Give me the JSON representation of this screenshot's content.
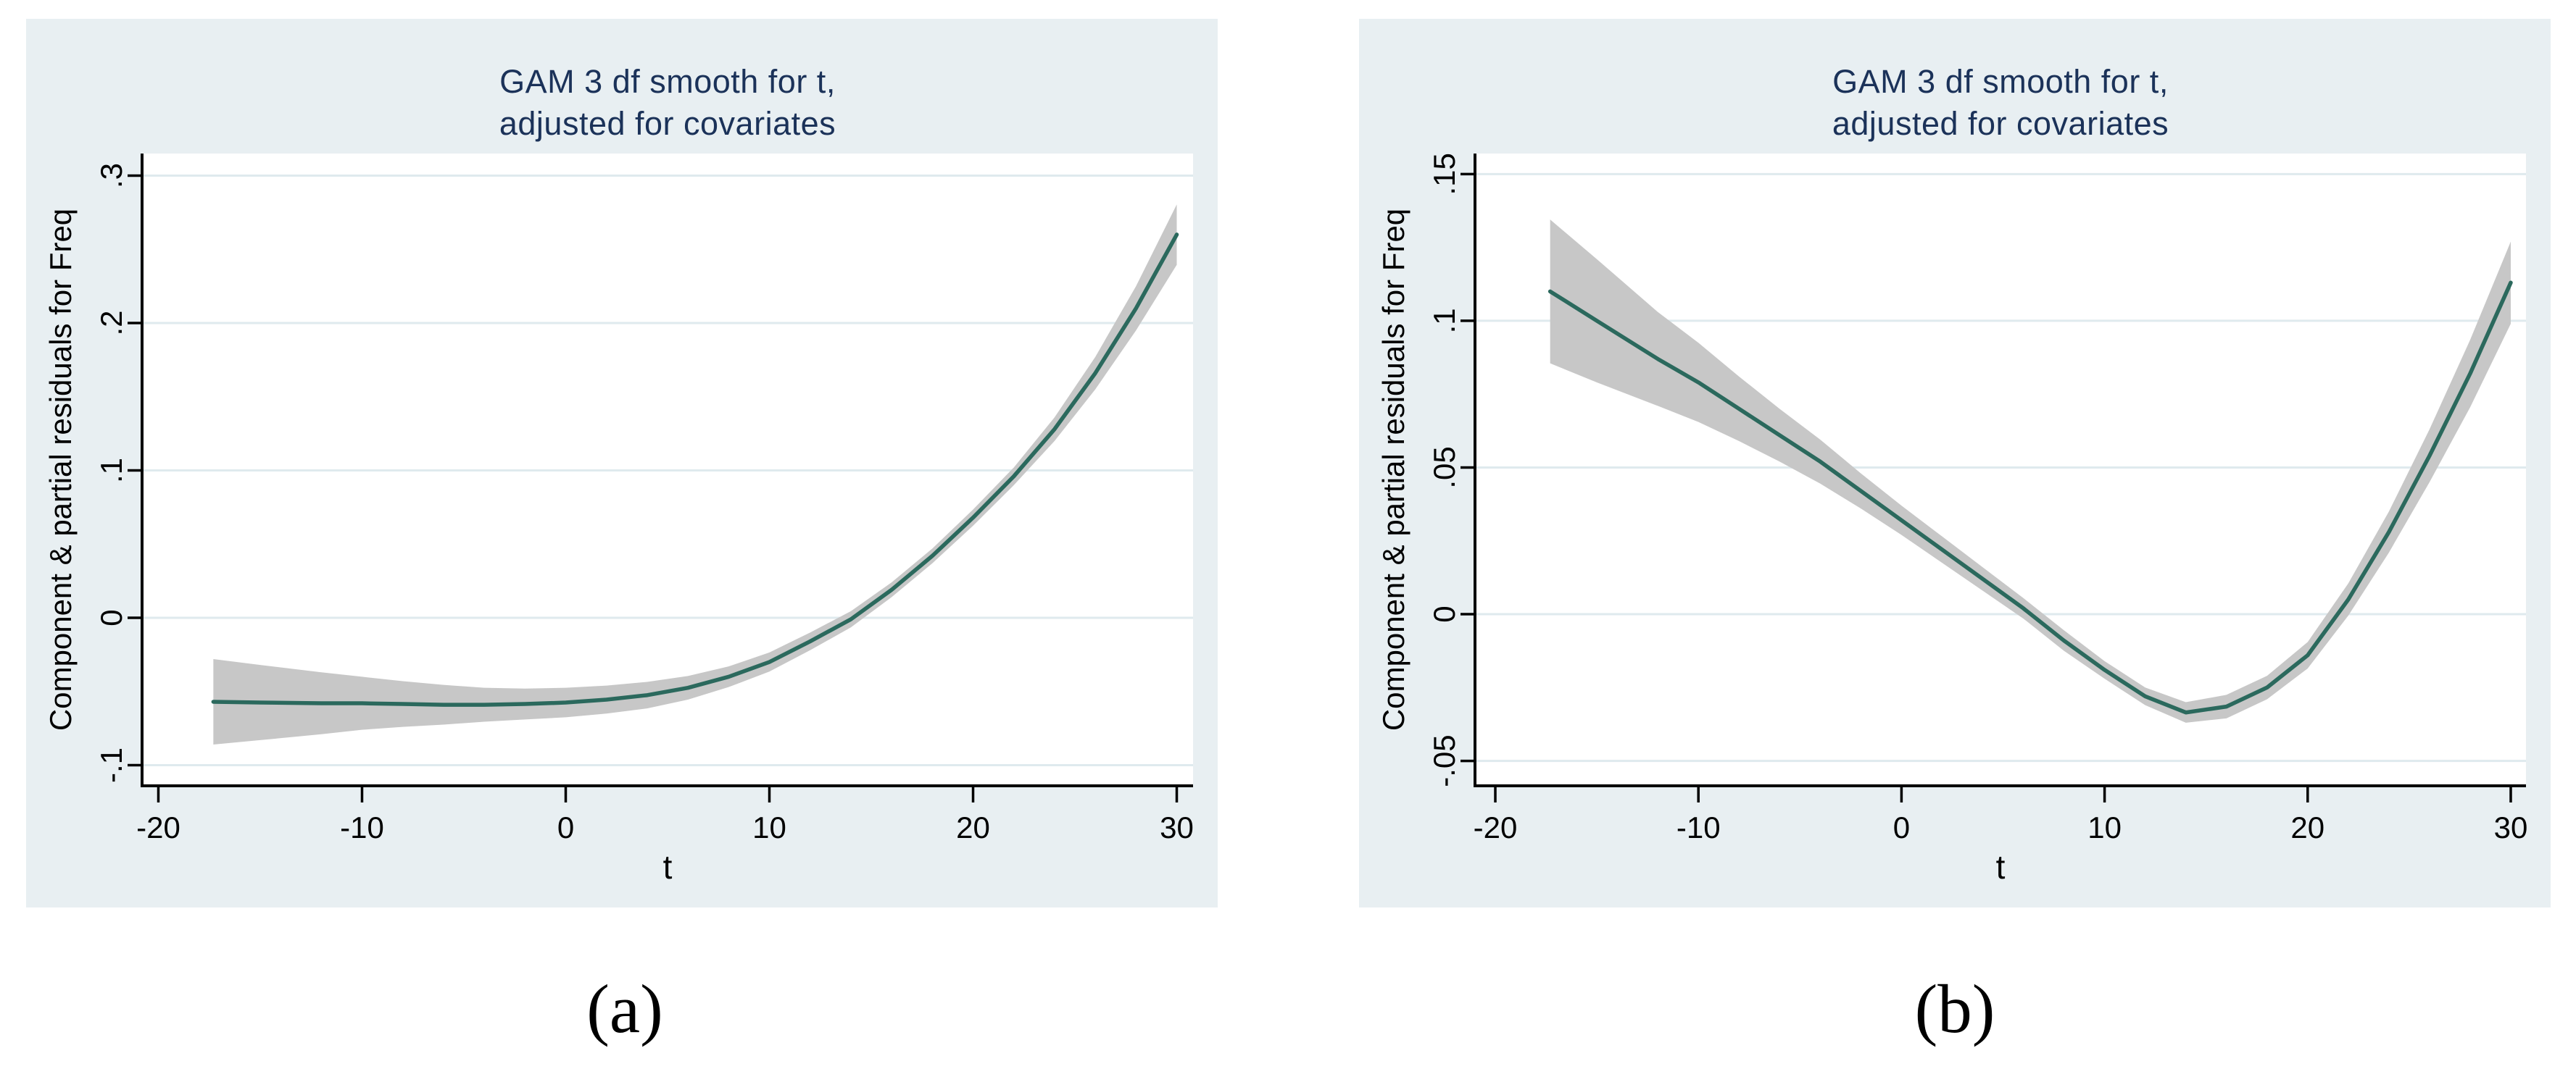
{
  "figure": {
    "panel_bg": "#e8eff2",
    "plot_bg": "#ffffff",
    "grid_color": "#dfeaee",
    "band_color": "#c7c7c7",
    "line_color": "#2b695d",
    "title_color": "#1b3259",
    "axis_color": "#000000",
    "tick_text_color": "#000000"
  },
  "captions": {
    "a": "(a)",
    "b": "(b)"
  },
  "chart_data": [
    {
      "id": "a",
      "type": "line",
      "title_line1": "GAM 3 df smooth for t,",
      "title_line2": "adjusted for covariates",
      "xlabel": "t",
      "ylabel": "Component & partial residuals for Freq",
      "legend": "none",
      "grid": true,
      "xlim": [
        -20.8,
        30.8
      ],
      "ylim": [
        -0.114,
        0.315
      ],
      "x_ticks": [
        {
          "v": -20,
          "label": "-20"
        },
        {
          "v": -10,
          "label": "-10"
        },
        {
          "v": 0,
          "label": "0"
        },
        {
          "v": 10,
          "label": "10"
        },
        {
          "v": 20,
          "label": "20"
        },
        {
          "v": 30,
          "label": "30"
        }
      ],
      "y_ticks": [
        {
          "v": 0.3,
          "label": ".3"
        },
        {
          "v": 0.2,
          "label": ".2"
        },
        {
          "v": 0.1,
          "label": ".1"
        },
        {
          "v": 0,
          "label": "0"
        },
        {
          "v": -0.1,
          "label": "-.1"
        }
      ],
      "x": [
        -17.3,
        -15,
        -12,
        -10,
        -8,
        -6,
        -4,
        -2,
        0,
        2,
        4,
        6,
        8,
        10,
        12,
        14,
        16,
        18,
        20,
        22,
        24,
        26,
        28,
        30
      ],
      "series": [
        {
          "name": "GAM 3 df smooth fit",
          "values": [
            -0.057,
            -0.0575,
            -0.058,
            -0.058,
            -0.0585,
            -0.059,
            -0.059,
            -0.0585,
            -0.0575,
            -0.0555,
            -0.0525,
            -0.0475,
            -0.04,
            -0.03,
            -0.016,
            -0.001,
            0.019,
            0.042,
            0.068,
            0.096,
            0.128,
            0.166,
            0.21,
            0.26
          ]
        },
        {
          "name": "95% confidence upper",
          "values": [
            -0.028,
            -0.032,
            -0.037,
            -0.04,
            -0.043,
            -0.0455,
            -0.0475,
            -0.048,
            -0.0475,
            -0.046,
            -0.0435,
            -0.0395,
            -0.033,
            -0.0235,
            -0.01,
            0.0045,
            0.024,
            0.047,
            0.0735,
            0.102,
            0.136,
            0.177,
            0.225,
            0.2805
          ]
        },
        {
          "name": "95% confidence lower",
          "values": [
            -0.086,
            -0.083,
            -0.079,
            -0.076,
            -0.074,
            -0.0725,
            -0.0705,
            -0.069,
            -0.0675,
            -0.065,
            -0.0615,
            -0.0555,
            -0.047,
            -0.0365,
            -0.022,
            -0.0065,
            0.014,
            0.037,
            0.0625,
            0.09,
            0.12,
            0.155,
            0.195,
            0.2395
          ]
        }
      ]
    },
    {
      "id": "b",
      "type": "line",
      "title_line1": "GAM 3 df smooth for t,",
      "title_line2": "adjusted for covariates",
      "xlabel": "t",
      "ylabel": "Component & partial residuals for Freq",
      "legend": "none",
      "grid": true,
      "xlim": [
        -21.0,
        30.75
      ],
      "ylim": [
        -0.0585,
        0.157
      ],
      "x_ticks": [
        {
          "v": -20,
          "label": "-20"
        },
        {
          "v": -10,
          "label": "-10"
        },
        {
          "v": 0,
          "label": "0"
        },
        {
          "v": 10,
          "label": "10"
        },
        {
          "v": 20,
          "label": "20"
        },
        {
          "v": 30,
          "label": "30"
        }
      ],
      "y_ticks": [
        {
          "v": 0.15,
          "label": ".15"
        },
        {
          "v": 0.1,
          "label": ".1"
        },
        {
          "v": 0.05,
          "label": ".05"
        },
        {
          "v": 0,
          "label": "0"
        },
        {
          "v": -0.05,
          "label": "-.05"
        }
      ],
      "x": [
        -17.3,
        -15,
        -12,
        -10,
        -8,
        -6,
        -4,
        -2,
        0,
        2,
        4,
        6,
        8,
        10,
        12,
        14,
        16,
        18,
        20,
        22,
        24,
        26,
        28,
        30
      ],
      "series": [
        {
          "name": "GAM 3 df smooth fit",
          "values": [
            0.11,
            0.1,
            0.087,
            0.079,
            0.07,
            0.061,
            0.052,
            0.042,
            0.032,
            0.022,
            0.012,
            0.002,
            -0.009,
            -0.019,
            -0.028,
            -0.0335,
            -0.0315,
            -0.025,
            -0.014,
            0.005,
            0.028,
            0.054,
            0.082,
            0.113
          ]
        },
        {
          "name": "95% confidence upper",
          "values": [
            0.1345,
            0.121,
            0.103,
            0.0925,
            0.081,
            0.07,
            0.0595,
            0.048,
            0.037,
            0.0265,
            0.016,
            0.0055,
            -0.0055,
            -0.016,
            -0.025,
            -0.03,
            -0.0275,
            -0.021,
            -0.0095,
            0.0105,
            0.035,
            0.063,
            0.0935,
            0.127
          ]
        },
        {
          "name": "95% confidence lower",
          "values": [
            0.0855,
            0.079,
            0.071,
            0.0655,
            0.059,
            0.052,
            0.0445,
            0.036,
            0.027,
            0.0175,
            0.008,
            -0.0015,
            -0.0125,
            -0.022,
            -0.031,
            -0.037,
            -0.0355,
            -0.029,
            -0.0185,
            -0.0005,
            0.021,
            0.045,
            0.0705,
            0.099
          ]
        }
      ]
    }
  ]
}
